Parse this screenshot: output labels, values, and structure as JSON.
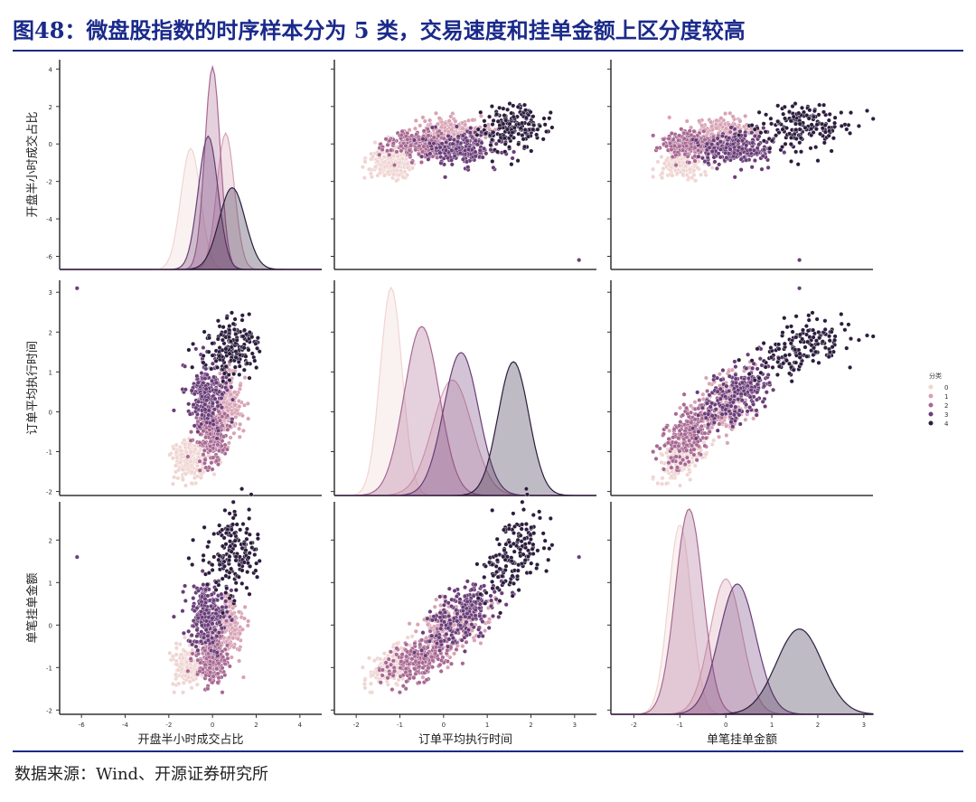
{
  "title": "图48：微盘股指数的时序样本分为 5 类，交易速度和挂单金额上区分度较高",
  "source": "数据来源：Wind、开源证券研究所",
  "chart_data": {
    "type": "scatter",
    "subtype": "pairplot",
    "legend": {
      "title": "分类",
      "labels": [
        "0",
        "1",
        "2",
        "3",
        "4"
      ],
      "placement": "right"
    },
    "colors": [
      "#efd5d2",
      "#d8a3b4",
      "#a86892",
      "#6a3d78",
      "#2c1d3d"
    ],
    "variables": [
      {
        "name": "开盘半小时成交占比",
        "range": [
          -7,
          5
        ],
        "ticks": [
          -6,
          -4,
          -2,
          0,
          2,
          4
        ]
      },
      {
        "name": "订单平均执行时间",
        "range": [
          -2.5,
          3.5
        ],
        "ticks": [
          -2,
          -1,
          0,
          1,
          2,
          3
        ]
      },
      {
        "name": "单笔挂单金额",
        "range": [
          -2.5,
          3.2
        ],
        "ticks": [
          -2,
          -1,
          0,
          1,
          2,
          3
        ]
      }
    ],
    "row_ticks": [
      [
        -6,
        -4,
        -2,
        0,
        2,
        4
      ],
      [
        -2,
        -1,
        0,
        1,
        2,
        3
      ],
      [
        -2,
        -1,
        0,
        1,
        2
      ]
    ],
    "row_ranges": [
      [
        -6.7,
        4.5
      ],
      [
        -2.1,
        3.3
      ],
      [
        -2.1,
        2.9
      ]
    ],
    "clusters": [
      {
        "label": "0",
        "n": 200,
        "mean": [
          -1.0,
          -1.2,
          -1.0
        ],
        "sd": [
          0.45,
          0.25,
          0.25
        ]
      },
      {
        "label": "1",
        "n": 200,
        "mean": [
          0.6,
          0.2,
          0.0
        ],
        "sd": [
          0.4,
          0.45,
          0.35
        ]
      },
      {
        "label": "2",
        "n": 260,
        "mean": [
          0.0,
          -0.5,
          -0.8
        ],
        "sd": [
          0.35,
          0.4,
          0.3
        ]
      },
      {
        "label": "3",
        "n": 220,
        "mean": [
          -0.2,
          0.4,
          0.25
        ],
        "sd": [
          0.45,
          0.4,
          0.4
        ]
      },
      {
        "label": "4",
        "n": 180,
        "mean": [
          0.9,
          1.6,
          1.6
        ],
        "sd": [
          0.6,
          0.35,
          0.5
        ]
      }
    ],
    "outliers": [
      [
        -6.2,
        3.1,
        1.6
      ]
    ]
  }
}
